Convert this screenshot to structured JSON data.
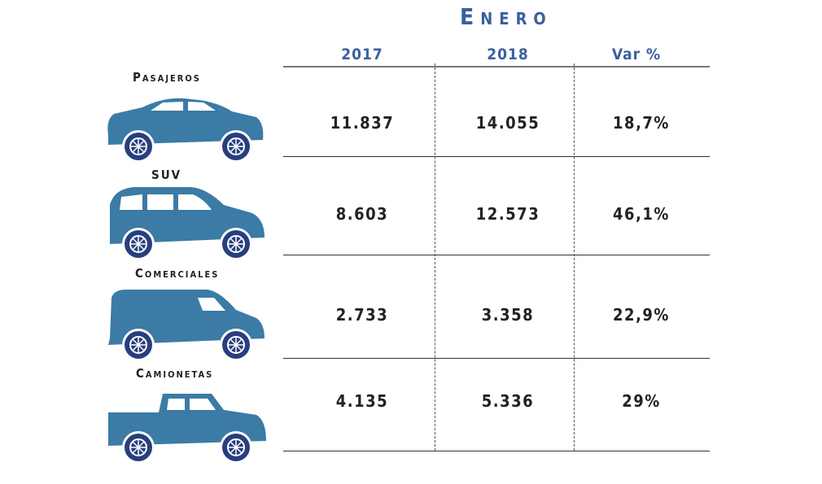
{
  "colors": {
    "header": "#3a60a0",
    "vehicle": "#3b7ba6",
    "wheel": "#283e7e"
  },
  "chart_data": {
    "type": "table",
    "title": "Enero",
    "columns": [
      "2017",
      "2018",
      "Var %"
    ],
    "rows": [
      {
        "label": "Pasajeros",
        "icon": "sedan-car-icon",
        "values": [
          "11.837",
          "14.055",
          "18,7%"
        ]
      },
      {
        "label": "SUV",
        "icon": "suv-icon",
        "values": [
          "8.603",
          "12.573",
          "46,1%"
        ]
      },
      {
        "label": "Comerciales",
        "icon": "van-icon",
        "values": [
          "2.733",
          "3.358",
          "22,9%"
        ]
      },
      {
        "label": "Camionetas",
        "icon": "pickup-truck-icon",
        "values": [
          "4.135",
          "5.336",
          "29%"
        ]
      }
    ]
  }
}
